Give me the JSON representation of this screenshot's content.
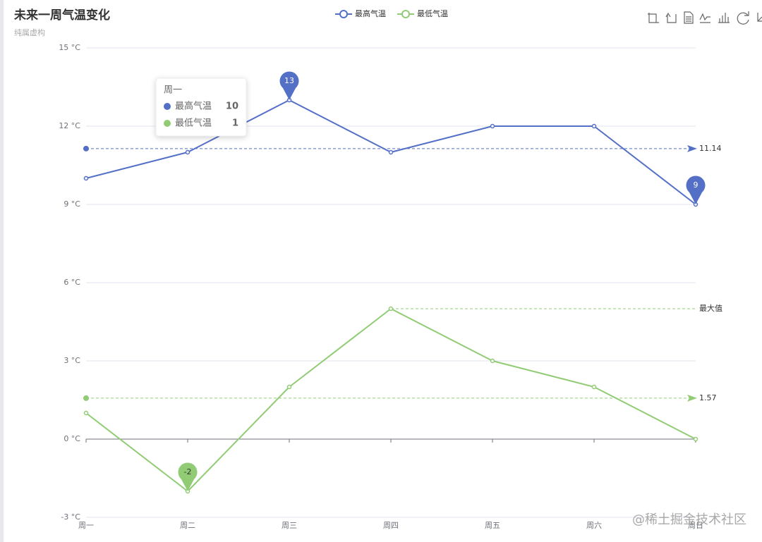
{
  "chart_data": {
    "type": "line",
    "title": "未来一周气温变化",
    "subtitle": "纯属虚构",
    "categories": [
      "周一",
      "周二",
      "周三",
      "周四",
      "周五",
      "周六",
      "周日"
    ],
    "series": [
      {
        "name": "最高气温",
        "color": "#5470c6",
        "values": [
          10,
          11,
          13,
          11,
          12,
          12,
          9
        ],
        "mark_points": [
          13,
          9
        ],
        "mark_lines": [
          11.14
        ]
      },
      {
        "name": "最低气温",
        "color": "#91cc75",
        "values": [
          1,
          -2,
          2,
          5,
          3,
          2,
          0
        ],
        "mark_points": [
          -2
        ],
        "mark_lines": [
          {
            "value": 5,
            "label": "最大值"
          },
          1.57
        ]
      }
    ],
    "ylim": [
      -3,
      15
    ],
    "yticks": [
      {
        "value": -3,
        "label": "-3 °C"
      },
      {
        "value": 0,
        "label": "0 °C"
      },
      {
        "value": 3,
        "label": "3 °C"
      },
      {
        "value": 6,
        "label": "6 °C"
      },
      {
        "value": 9,
        "label": "9 °C"
      },
      {
        "value": 12,
        "label": "12 °C"
      },
      {
        "value": 15,
        "label": "15 °C"
      }
    ],
    "grid": true,
    "watermark": "@稀土掘金技术社区"
  }
}
